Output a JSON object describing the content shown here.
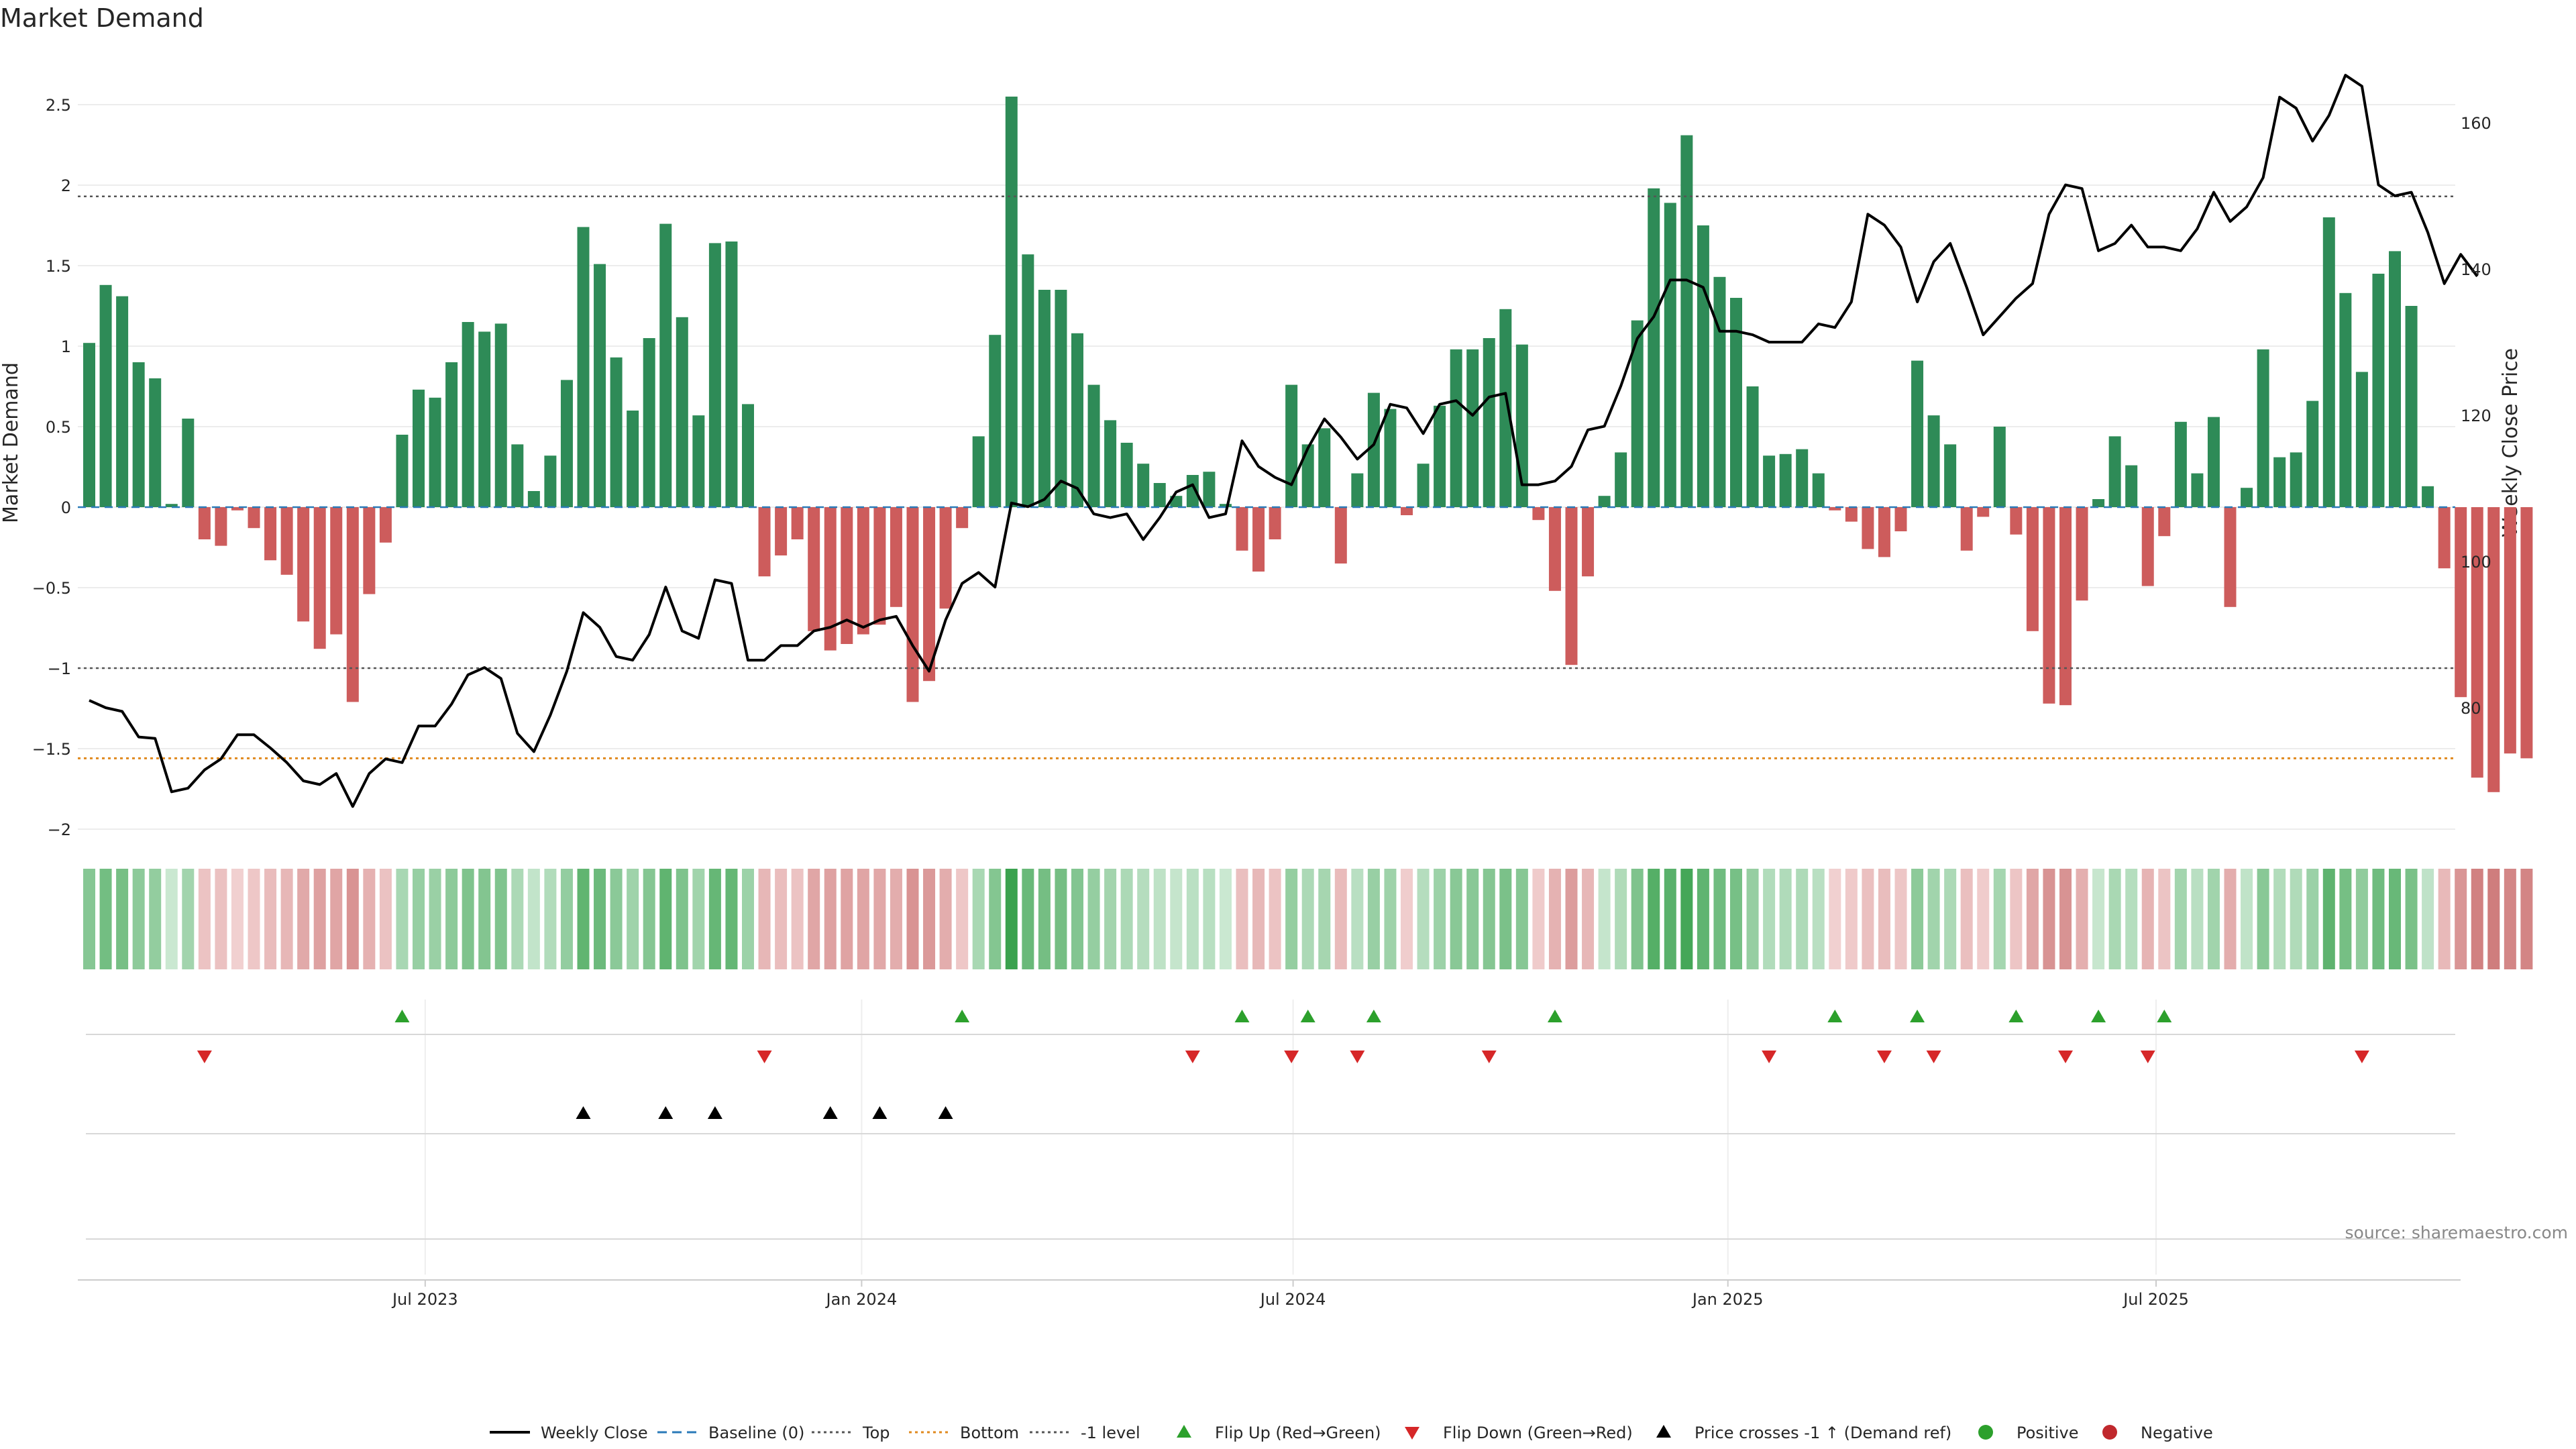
{
  "chart_data": {
    "type": "bar",
    "title": "Market Demand",
    "ylabel": "Market Demand",
    "y2label": "Weekly Close Price",
    "ylim": [
      -2.1,
      2.75
    ],
    "y2lim": [
      62,
      168
    ],
    "yticks": [
      "2.5",
      "2",
      "1.5",
      "1",
      "0.5",
      "0",
      "−0.5",
      "−1",
      "−1.5",
      "−2"
    ],
    "y2ticks": [
      "160",
      "140",
      "120",
      "100",
      "80"
    ],
    "xticks": [
      "Jul 2023",
      "Jan 2024",
      "Jul 2024",
      "Jan 2025",
      "Jul 2025"
    ],
    "reference_lines": {
      "top": 1.93,
      "bottom": -1.56,
      "minus_one": -1.0
    },
    "series": [
      {
        "name": "Market Demand",
        "values": [
          1.02,
          1.38,
          1.31,
          0.9,
          0.8,
          0.02,
          0.55,
          -0.2,
          -0.24,
          -0.02,
          -0.13,
          -0.33,
          -0.42,
          -0.71,
          -0.88,
          -0.79,
          -1.21,
          -0.54,
          -0.22,
          0.45,
          0.73,
          0.68,
          0.9,
          1.15,
          1.09,
          1.14,
          0.39,
          0.1,
          0.32,
          0.79,
          1.74,
          1.51,
          0.93,
          0.6,
          1.05,
          1.76,
          1.18,
          0.57,
          1.64,
          1.65,
          0.64,
          -0.43,
          -0.3,
          -0.2,
          -0.77,
          -0.89,
          -0.85,
          -0.79,
          -0.73,
          -0.62,
          -1.21,
          -1.08,
          -0.63,
          -0.13,
          0.44,
          1.07,
          2.55,
          1.57,
          1.35,
          1.35,
          1.08,
          0.76,
          0.54,
          0.4,
          0.27,
          0.15,
          0.07,
          0.2,
          0.22,
          0.02,
          -0.27,
          -0.4,
          -0.2,
          0.76,
          0.39,
          0.49,
          -0.35,
          0.21,
          0.71,
          0.61,
          -0.05,
          0.27,
          0.63,
          0.98,
          0.98,
          1.05,
          1.23,
          1.01,
          -0.08,
          -0.52,
          -0.98,
          -0.43,
          0.07,
          0.34,
          1.16,
          1.98,
          1.89,
          2.31,
          1.75,
          1.43,
          1.3,
          0.75,
          0.32,
          0.33,
          0.36,
          0.21,
          -0.02,
          -0.09,
          -0.26,
          -0.31,
          -0.15,
          0.91,
          0.57,
          0.39,
          -0.27,
          -0.06,
          0.5,
          -0.17,
          -0.77,
          -1.22,
          -1.23,
          -0.58,
          0.05,
          0.44,
          0.26,
          -0.49,
          -0.18,
          0.53,
          0.21,
          0.56,
          -0.62,
          0.12,
          0.98,
          0.31,
          0.34,
          0.66,
          1.8,
          1.33,
          0.84,
          1.45,
          1.59,
          1.25,
          0.13,
          -0.38,
          -1.18,
          -1.68,
          -1.77,
          -1.53,
          -1.56
        ]
      },
      {
        "name": "Weekly Close",
        "values": [
          81,
          80,
          79.5,
          76,
          75.8,
          68.5,
          69,
          71.5,
          73,
          76.3,
          76.3,
          74.5,
          72.5,
          70,
          69.5,
          71,
          66.5,
          71,
          73,
          72.5,
          77.5,
          77.5,
          80.5,
          84.5,
          85.5,
          84,
          76.5,
          74,
          79,
          85,
          93,
          91,
          87,
          86.5,
          90,
          96.5,
          90.5,
          89.5,
          97.5,
          97,
          86.5,
          86.5,
          88.5,
          88.5,
          90.5,
          91,
          92,
          91,
          92,
          92.5,
          88.5,
          85,
          92,
          97,
          98.5,
          96.5,
          108,
          107.5,
          108.5,
          111,
          110,
          106.5,
          106,
          106.5,
          103,
          106,
          109.5,
          110.5,
          106,
          106.5,
          116.5,
          113,
          111.5,
          110.5,
          115.5,
          119.5,
          117,
          114,
          116,
          121.5,
          121,
          117.5,
          121.5,
          122,
          120,
          122.5,
          123,
          110.5,
          110.5,
          111,
          113,
          118,
          118.5,
          124,
          130.5,
          133.5,
          138.5,
          138.5,
          137.5,
          131.5,
          131.5,
          131,
          130,
          130,
          130,
          132.5,
          132,
          135.5,
          147.5,
          146,
          143,
          135.5,
          141,
          143.5,
          137.5,
          131,
          133.5,
          136,
          138,
          147.5,
          151.5,
          151,
          142.5,
          143.5,
          146,
          143,
          143,
          142.5,
          145.5,
          150.5,
          146.5,
          148.5,
          152.5,
          163.5,
          162,
          157.5,
          161,
          166.5,
          165,
          151.5,
          150,
          150.5,
          145,
          138,
          142,
          139
        ]
      }
    ],
    "signals": {
      "flip_up": [
        19,
        53,
        70,
        74,
        78,
        89,
        106,
        111,
        117,
        122,
        126
      ],
      "flip_down": [
        7,
        41,
        67,
        73,
        77,
        85,
        102,
        109,
        112,
        120,
        125,
        138
      ],
      "price_cross": [
        30,
        35,
        38,
        45,
        48,
        52
      ]
    },
    "legend": {
      "position": "bottom",
      "items": [
        {
          "label": "Weekly Close",
          "kind": "line",
          "color": "#000000"
        },
        {
          "label": "Baseline (0)",
          "kind": "dash",
          "color": "#2a7ab8"
        },
        {
          "label": "Top",
          "kind": "dot",
          "color": "#555555"
        },
        {
          "label": "Bottom",
          "kind": "dot",
          "color": "#e08a1e"
        },
        {
          "label": "-1 level",
          "kind": "dot",
          "color": "#555555"
        },
        {
          "label": "Flip Up (Red→Green)",
          "kind": "tri-up",
          "color": "#2ca02c"
        },
        {
          "label": "Flip Down (Green→Red)",
          "kind": "tri-down",
          "color": "#d62728"
        },
        {
          "label": "Price crosses -1 ↑ (Demand ref)",
          "kind": "tri-up",
          "color": "#000000"
        },
        {
          "label": "Positive",
          "kind": "circle",
          "color": "#2ca02c"
        },
        {
          "label": "Negative",
          "kind": "circle",
          "color": "#c0282d"
        }
      ]
    },
    "colors": {
      "positive_bar": "#2e8b57",
      "negative_bar": "#cd5c5c",
      "top": "#555555",
      "bottom": "#e08a1e",
      "minus_one": "#555555",
      "price": "#000000"
    }
  },
  "source": "source: sharemaestro.com"
}
